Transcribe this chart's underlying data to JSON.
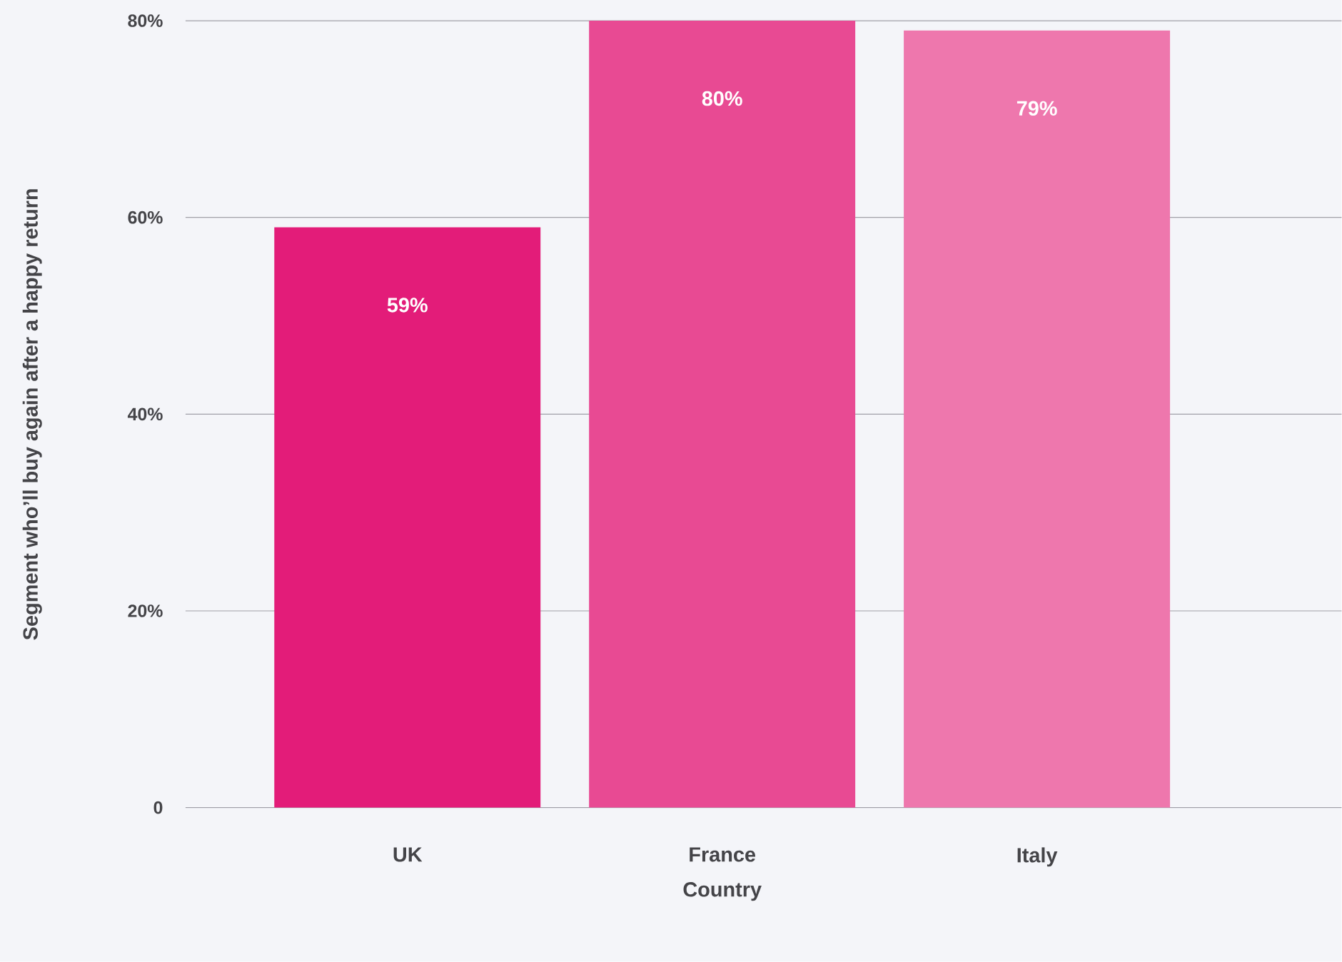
{
  "chart_data": {
    "type": "bar",
    "xlabel": "Country",
    "ylabel": "Segment who’ll buy again after a happy return",
    "categories": [
      "UK",
      "France",
      "Italy"
    ],
    "values": [
      59,
      80,
      79
    ],
    "value_labels": [
      "59%",
      "80%",
      "79%"
    ],
    "colors": [
      "#e31c79",
      "#e84a93",
      "#ee77ad"
    ],
    "ylim": [
      0,
      80
    ],
    "yticks": [
      {
        "value": 0,
        "label": "0"
      },
      {
        "value": 20,
        "label": "20%"
      },
      {
        "value": 40,
        "label": "40%"
      },
      {
        "value": 60,
        "label": "60%"
      },
      {
        "value": 80,
        "label": "80%"
      }
    ],
    "grid": "y"
  }
}
